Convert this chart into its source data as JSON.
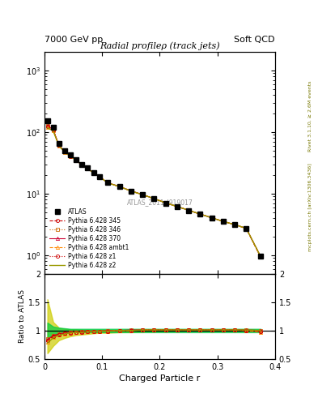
{
  "title": "Radial profileρ (track jets)",
  "header_left": "7000 GeV pp",
  "header_right": "Soft QCD",
  "right_label_top": "Rivet 3.1.10, ≥ 2.6M events",
  "right_label_bottom": "mcplots.cern.ch [arXiv:1306.3436]",
  "watermark": "ATLAS_2011_I919017",
  "xlabel": "Charged Particle r",
  "ylabel_ratio": "Ratio to ATLAS",
  "x_data": [
    0.005,
    0.015,
    0.025,
    0.035,
    0.045,
    0.055,
    0.065,
    0.075,
    0.085,
    0.095,
    0.11,
    0.13,
    0.15,
    0.17,
    0.19,
    0.21,
    0.23,
    0.25,
    0.27,
    0.29,
    0.31,
    0.33,
    0.35,
    0.375
  ],
  "atlas_y": [
    150,
    120,
    65,
    50,
    42,
    36,
    30,
    26,
    22,
    19,
    15,
    13,
    11,
    9.5,
    8.2,
    7.0,
    6.1,
    5.3,
    4.6,
    4.0,
    3.5,
    3.1,
    2.7,
    0.95
  ],
  "atlas_yerr": [
    8,
    6,
    3,
    2.5,
    2,
    1.8,
    1.5,
    1.3,
    1.1,
    0.95,
    0.75,
    0.65,
    0.55,
    0.47,
    0.41,
    0.35,
    0.3,
    0.26,
    0.23,
    0.2,
    0.17,
    0.15,
    0.13,
    0.05
  ],
  "pythia_lines": [
    {
      "label": "Pythia 6.428 345",
      "color": "#cc0000",
      "linestyle": "--",
      "marker": "o",
      "fillstyle": "none",
      "ratio_y": [
        0.82,
        0.9,
        0.93,
        0.95,
        0.96,
        0.97,
        0.97,
        0.98,
        0.98,
        0.99,
        0.99,
        1.0,
        1.0,
        1.01,
        1.01,
        1.01,
        1.01,
        1.01,
        1.01,
        1.01,
        1.01,
        1.01,
        1.0,
        0.98
      ]
    },
    {
      "label": "Pythia 6.428 346",
      "color": "#cc6600",
      "linestyle": ":",
      "marker": "s",
      "fillstyle": "none",
      "ratio_y": [
        0.85,
        0.91,
        0.94,
        0.96,
        0.97,
        0.97,
        0.98,
        0.98,
        0.99,
        0.99,
        1.0,
        1.0,
        1.01,
        1.01,
        1.01,
        1.01,
        1.01,
        1.01,
        1.01,
        1.01,
        1.01,
        1.01,
        1.01,
        1.0
      ]
    },
    {
      "label": "Pythia 6.428 370",
      "color": "#cc0033",
      "linestyle": "-",
      "marker": "^",
      "fillstyle": "none",
      "ratio_y": [
        0.84,
        0.91,
        0.94,
        0.96,
        0.97,
        0.97,
        0.98,
        0.98,
        0.99,
        0.99,
        1.0,
        1.0,
        1.01,
        1.01,
        1.01,
        1.01,
        1.01,
        1.01,
        1.01,
        1.01,
        1.01,
        1.01,
        1.01,
        1.0
      ]
    },
    {
      "label": "Pythia 6.428 ambt1",
      "color": "#ff8800",
      "linestyle": "--",
      "marker": "^",
      "fillstyle": "none",
      "ratio_y": [
        0.8,
        0.88,
        0.92,
        0.94,
        0.96,
        0.97,
        0.97,
        0.98,
        0.98,
        0.99,
        0.99,
        1.0,
        1.0,
        1.01,
        1.01,
        1.01,
        1.01,
        1.01,
        1.01,
        1.01,
        1.01,
        1.01,
        1.0,
        0.97
      ]
    },
    {
      "label": "Pythia 6.428 z1",
      "color": "#cc0000",
      "linestyle": ":",
      "marker": "o",
      "fillstyle": "none",
      "ratio_y": [
        0.83,
        0.9,
        0.93,
        0.95,
        0.96,
        0.97,
        0.97,
        0.98,
        0.98,
        0.99,
        0.99,
        1.0,
        1.0,
        1.01,
        1.01,
        1.01,
        1.01,
        1.01,
        1.01,
        1.01,
        1.01,
        1.01,
        1.0,
        0.98
      ]
    },
    {
      "label": "Pythia 6.428 z2",
      "color": "#999900",
      "linestyle": "-",
      "marker": null,
      "fillstyle": "full",
      "ratio_y": [
        0.78,
        0.87,
        0.92,
        0.94,
        0.96,
        0.97,
        0.97,
        0.98,
        0.98,
        0.99,
        0.99,
        1.0,
        1.0,
        1.01,
        1.01,
        1.01,
        1.01,
        1.01,
        1.01,
        1.01,
        1.01,
        1.01,
        1.01,
        1.0
      ],
      "band_y_lo": [
        0.6,
        0.73,
        0.83,
        0.87,
        0.9,
        0.92,
        0.93,
        0.94,
        0.95,
        0.96,
        0.96,
        0.97,
        0.97,
        0.98,
        0.98,
        0.985,
        0.985,
        0.99,
        0.99,
        0.99,
        0.99,
        0.99,
        0.99,
        0.98
      ],
      "band_y_hi": [
        1.55,
        1.15,
        1.05,
        1.03,
        1.02,
        1.02,
        1.01,
        1.01,
        1.01,
        1.01,
        1.01,
        1.01,
        1.01,
        1.01,
        1.01,
        1.01,
        1.01,
        1.01,
        1.01,
        1.01,
        1.01,
        1.01,
        1.01,
        1.02
      ]
    }
  ],
  "atlas_band_lo": [
    0.86,
    0.93,
    0.95,
    0.96,
    0.97,
    0.97,
    0.97,
    0.97,
    0.97,
    0.97,
    0.97,
    0.97,
    0.97,
    0.97,
    0.97,
    0.97,
    0.97,
    0.97,
    0.97,
    0.97,
    0.97,
    0.97,
    0.97,
    0.97
  ],
  "atlas_band_hi": [
    1.14,
    1.07,
    1.05,
    1.04,
    1.03,
    1.03,
    1.03,
    1.03,
    1.03,
    1.03,
    1.03,
    1.03,
    1.03,
    1.03,
    1.03,
    1.03,
    1.03,
    1.03,
    1.03,
    1.03,
    1.03,
    1.03,
    1.03,
    1.03
  ],
  "band_green": "#00cc44",
  "band_yellow": "#cccc00",
  "xlim": [
    0.0,
    0.4
  ],
  "ylim_main": [
    0.5,
    2000
  ],
  "ylim_ratio": [
    0.5,
    2.0
  ],
  "bg_color": "#ffffff"
}
